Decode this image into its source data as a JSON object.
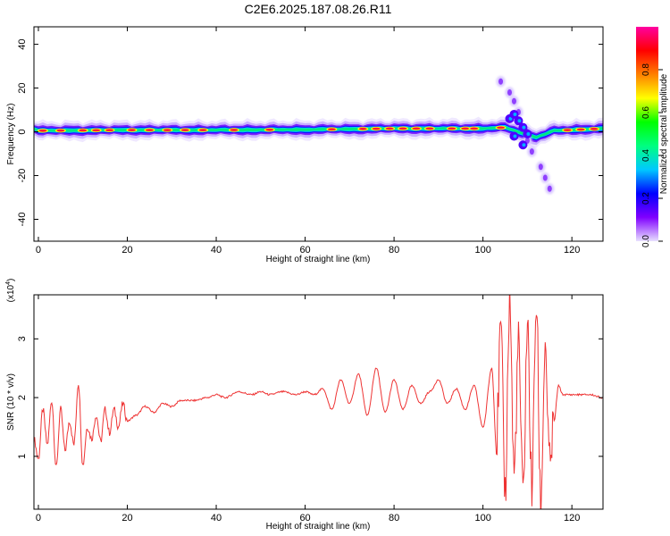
{
  "title": "C2E6.2025.187.08.26.R11",
  "chart_data": [
    {
      "type": "heatmap",
      "xlabel": "Height of straight line (km)",
      "ylabel": "Frequency (Hz)",
      "xlim": [
        -1,
        127
      ],
      "ylim": [
        -50,
        48
      ],
      "xticks": [
        "0",
        "20",
        "40",
        "60",
        "80",
        "100",
        "120"
      ],
      "yticks": [
        "-40",
        "-20",
        "0",
        "20",
        "40"
      ],
      "colorbar": {
        "label": "Normalized spectral amplitude",
        "range": [
          0,
          1
        ],
        "ticks": [
          "0.0",
          "0.2",
          "0.4",
          "0.6",
          "0.8"
        ],
        "colors": [
          "#e8e0ff",
          "#8000ff",
          "#0000ff",
          "#00c8ff",
          "#00ff80",
          "#00ff00",
          "#ffff00",
          "#ff8000",
          "#ff0000",
          "#ff00a0"
        ]
      },
      "ridge": [
        {
          "x": 0,
          "f": 0.5
        },
        {
          "x": 20,
          "f": 0.8
        },
        {
          "x": 40,
          "f": 0.8
        },
        {
          "x": 60,
          "f": 1.0
        },
        {
          "x": 80,
          "f": 1.5
        },
        {
          "x": 100,
          "f": 1.5
        },
        {
          "x": 105,
          "f": 2.0
        },
        {
          "x": 108,
          "f": 0.0
        },
        {
          "x": 112,
          "f": -2.5
        },
        {
          "x": 116,
          "f": 0.5
        },
        {
          "x": 127,
          "f": 1.5
        }
      ],
      "hot_spots": [
        1,
        5,
        10,
        13,
        16,
        21,
        25,
        29,
        33,
        37,
        44,
        52,
        66,
        73,
        76,
        79,
        82,
        85,
        88,
        93,
        96,
        98,
        104,
        119,
        122,
        125
      ],
      "spread": [
        {
          "x": 104,
          "f": 23
        },
        {
          "x": 106,
          "f": 18
        },
        {
          "x": 107,
          "f": 14
        },
        {
          "x": 108,
          "f": 9
        },
        {
          "x": 110,
          "f": -4
        },
        {
          "x": 111,
          "f": -9
        },
        {
          "x": 113,
          "f": -16
        },
        {
          "x": 114,
          "f": -21
        },
        {
          "x": 115,
          "f": -26
        }
      ]
    },
    {
      "type": "line",
      "xlabel": "Height of straight line (km)",
      "ylabel": "SNR (10 * v/v)",
      "yscale_label": "(x10",
      "yscale_exp": "4",
      "xlim": [
        -1,
        127
      ],
      "ylim": [
        0.1,
        3.75
      ],
      "xticks": [
        "0",
        "20",
        "40",
        "60",
        "80",
        "100",
        "120"
      ],
      "yticks": [
        "1",
        "2",
        "3"
      ],
      "series": [
        {
          "color": "#ee3333",
          "x": [
            -1,
            0,
            1,
            2,
            3,
            4,
            5,
            6,
            7,
            8,
            9,
            10,
            11,
            12,
            13,
            14,
            15,
            16,
            17,
            18,
            19,
            20,
            22,
            24,
            26,
            28,
            30,
            32,
            35,
            38,
            40,
            42,
            45,
            48,
            50,
            52,
            55,
            58,
            60,
            62,
            64,
            66,
            68,
            70,
            72,
            74,
            76,
            78,
            80,
            82,
            84,
            86,
            88,
            90,
            92,
            94,
            96,
            98,
            100,
            102,
            103,
            104,
            105,
            106,
            107,
            108,
            109,
            110,
            111,
            112,
            113,
            114,
            115,
            116,
            117,
            118,
            120,
            122,
            124,
            127
          ],
          "y": [
            1.3,
            0.95,
            1.8,
            1.2,
            1.95,
            0.8,
            1.8,
            1.1,
            1.6,
            1.2,
            2.25,
            0.85,
            1.5,
            1.3,
            1.7,
            1.25,
            1.8,
            1.4,
            1.8,
            1.5,
            1.9,
            1.6,
            1.7,
            1.85,
            1.75,
            1.9,
            1.85,
            1.95,
            1.95,
            2.0,
            2.05,
            2.0,
            2.1,
            2.05,
            2.1,
            2.05,
            2.1,
            2.05,
            2.1,
            2.05,
            2.15,
            1.8,
            2.3,
            1.9,
            2.4,
            1.7,
            2.5,
            1.75,
            2.3,
            1.8,
            2.2,
            1.9,
            2.1,
            2.3,
            1.9,
            2.15,
            1.8,
            2.2,
            1.5,
            2.5,
            1.2,
            3.1,
            0.4,
            3.7,
            0.7,
            2.9,
            0.3,
            3.2,
            0.5,
            3.6,
            0.2,
            2.9,
            0.8,
            1.6,
            2.2,
            2.05,
            2.05,
            2.05,
            2.05,
            2.0
          ]
        }
      ]
    }
  ]
}
